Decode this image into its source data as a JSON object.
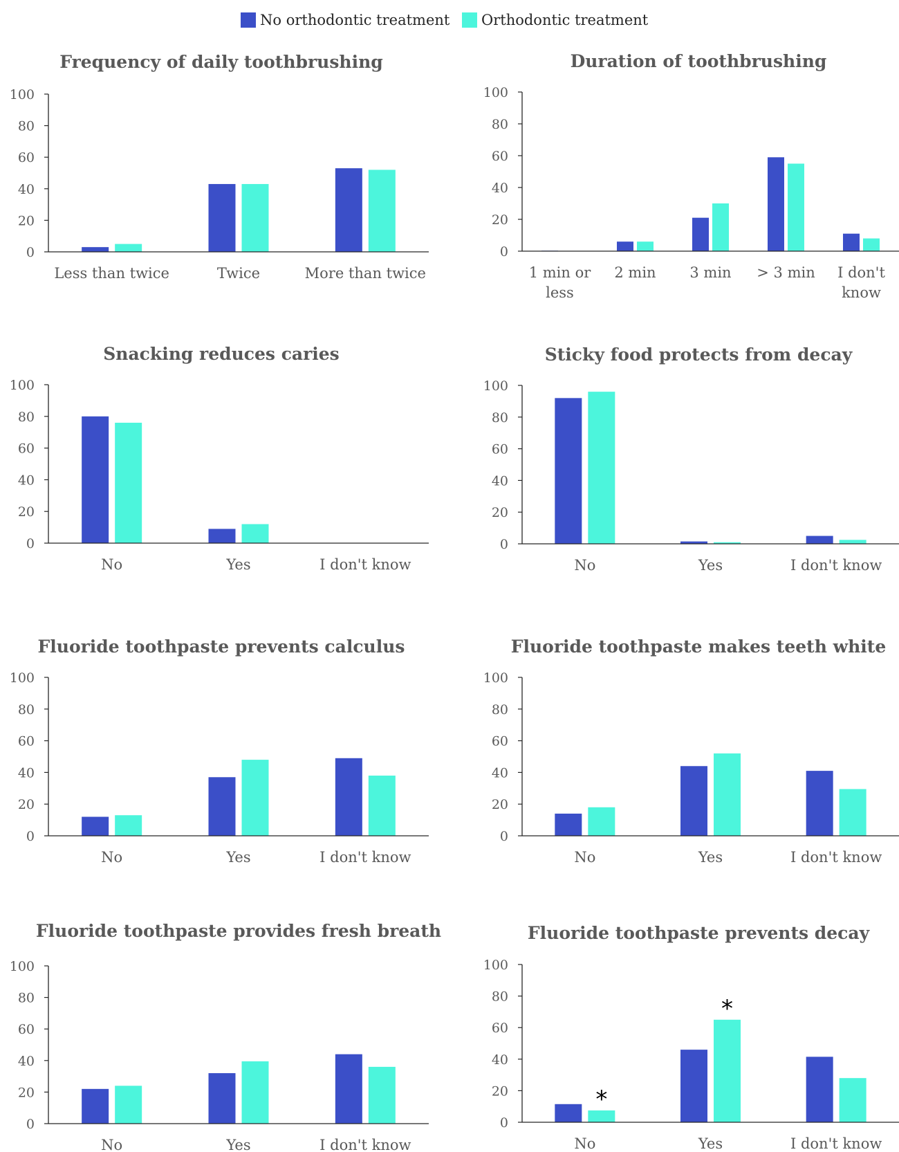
{
  "colors": {
    "no_treatment": "#3B4FC8",
    "treatment": "#4CF5DC",
    "axis": "#262626"
  },
  "chart_data": [
    {
      "type": "bar",
      "title": "Frequency of daily toothbrushing",
      "categories": [
        [
          "Less than twice"
        ],
        [
          "Twice"
        ],
        [
          "More than twice"
        ]
      ],
      "series": [
        {
          "name": "No orthodontic treatment",
          "values": [
            3,
            43,
            53
          ]
        },
        {
          "name": "Orthodontic treatment",
          "values": [
            5,
            43,
            52
          ]
        }
      ],
      "ylim": [
        0,
        100
      ],
      "yticks": [
        "0",
        "20",
        "40",
        "60",
        "80",
        "100"
      ],
      "legend": "top-center"
    },
    {
      "type": "bar",
      "title": "Duration of toothbrushing",
      "categories": [
        [
          "1 min or",
          "less"
        ],
        [
          "2 min"
        ],
        [
          "3 min"
        ],
        [
          "> 3 min"
        ],
        [
          "I don't",
          "know"
        ]
      ],
      "series": [
        {
          "name": "No orthodontic treatment",
          "values": [
            0.3,
            6,
            21,
            59,
            11
          ]
        },
        {
          "name": "Orthodontic treatment",
          "values": [
            0,
            6,
            30,
            55,
            8
          ]
        }
      ],
      "ylim": [
        0,
        100
      ],
      "yticks": [
        "0",
        "20",
        "40",
        "60",
        "80",
        "100"
      ]
    },
    {
      "type": "bar",
      "title": "Snacking reduces caries",
      "categories": [
        [
          "No"
        ],
        [
          "Yes"
        ],
        [
          "I don't know"
        ]
      ],
      "series": [
        {
          "name": "No orthodontic treatment",
          "values": [
            80,
            9,
            0
          ]
        },
        {
          "name": "Orthodontic treatment",
          "values": [
            76,
            12,
            0
          ]
        }
      ],
      "ylim": [
        0,
        100
      ],
      "yticks": [
        "0",
        "20",
        "40",
        "60",
        "80",
        "100"
      ]
    },
    {
      "type": "bar",
      "title": "Sticky food protects from decay",
      "categories": [
        [
          "No"
        ],
        [
          "Yes"
        ],
        [
          "I don't know"
        ]
      ],
      "series": [
        {
          "name": "No orthodontic treatment",
          "values": [
            92,
            1.5,
            5
          ]
        },
        {
          "name": "Orthodontic treatment",
          "values": [
            96,
            1,
            2.5
          ]
        }
      ],
      "ylim": [
        0,
        100
      ],
      "yticks": [
        "0",
        "20",
        "40",
        "60",
        "80",
        "100"
      ]
    },
    {
      "type": "bar",
      "title": "Fluoride toothpaste prevents calculus",
      "categories": [
        [
          "No"
        ],
        [
          "Yes"
        ],
        [
          "I don't know"
        ]
      ],
      "series": [
        {
          "name": "No orthodontic treatment",
          "values": [
            12,
            37,
            49
          ]
        },
        {
          "name": "Orthodontic treatment",
          "values": [
            13,
            48,
            38
          ]
        }
      ],
      "ylim": [
        0,
        100
      ],
      "yticks": [
        "0",
        "20",
        "40",
        "60",
        "80",
        "100"
      ]
    },
    {
      "type": "bar",
      "title": "Fluoride toothpaste makes teeth white",
      "categories": [
        [
          "No"
        ],
        [
          "Yes"
        ],
        [
          "I don't know"
        ]
      ],
      "series": [
        {
          "name": "No orthodontic treatment",
          "values": [
            14,
            44,
            41
          ]
        },
        {
          "name": "Orthodontic treatment",
          "values": [
            18,
            52,
            29.5
          ]
        }
      ],
      "ylim": [
        0,
        100
      ],
      "yticks": [
        "0",
        "20",
        "40",
        "60",
        "80",
        "100"
      ]
    },
    {
      "type": "bar",
      "title": "Fluoride toothpaste provides fresh breath",
      "categories": [
        [
          "No"
        ],
        [
          "Yes"
        ],
        [
          "I don't know"
        ]
      ],
      "series": [
        {
          "name": "No orthodontic treatment",
          "values": [
            22,
            32,
            44
          ]
        },
        {
          "name": "Orthodontic treatment",
          "values": [
            24,
            39.5,
            36
          ]
        }
      ],
      "ylim": [
        0,
        100
      ],
      "yticks": [
        "0",
        "20",
        "40",
        "60",
        "80",
        "100"
      ]
    },
    {
      "type": "bar",
      "title": "Fluoride toothpaste prevents decay",
      "categories": [
        [
          "No"
        ],
        [
          "Yes"
        ],
        [
          "I don't know"
        ]
      ],
      "series": [
        {
          "name": "No orthodontic treatment",
          "values": [
            11.5,
            46,
            41.5
          ]
        },
        {
          "name": "Orthodontic treatment",
          "values": [
            7.5,
            65,
            28
          ]
        }
      ],
      "ylim": [
        0,
        100
      ],
      "yticks": [
        "0",
        "20",
        "40",
        "60",
        "80",
        "100"
      ],
      "annotations": [
        {
          "text": "*",
          "category": 0,
          "series": 1
        },
        {
          "text": "*",
          "category": 1,
          "series": 1
        }
      ]
    }
  ]
}
